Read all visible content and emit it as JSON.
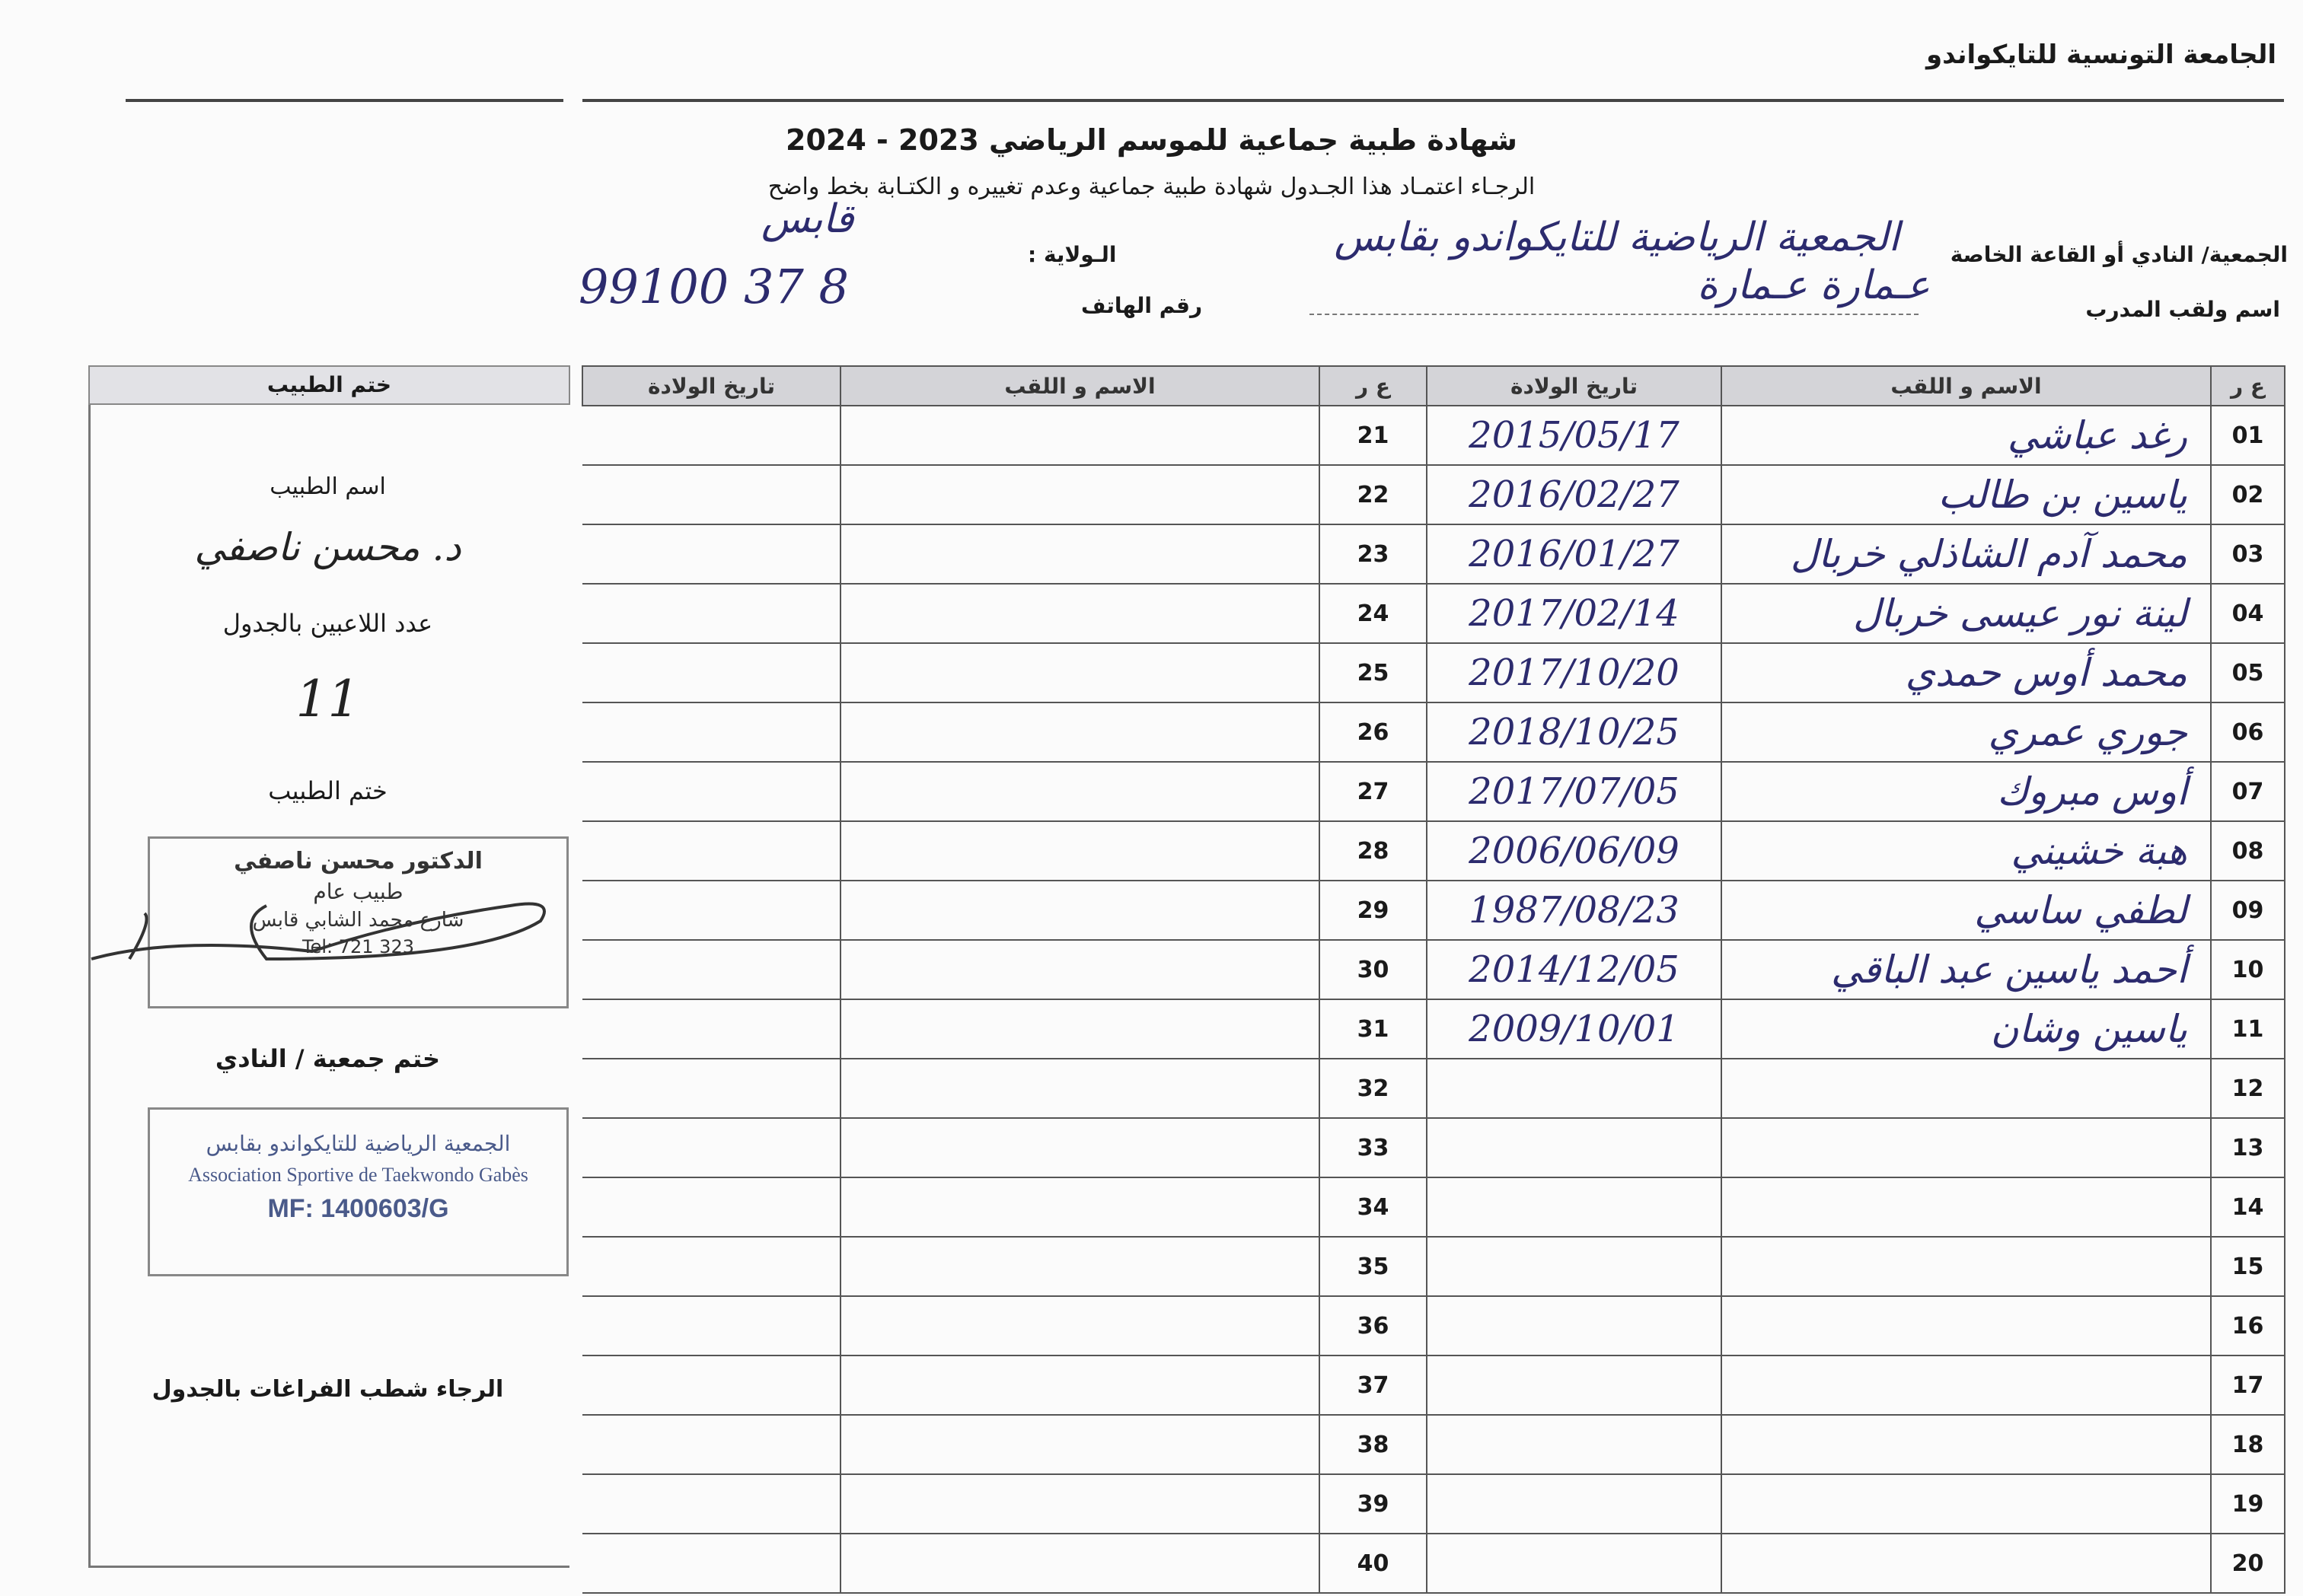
{
  "header": {
    "organization": "الجامعة التونسية للتايكواندو",
    "title": "شهادة طبية جماعية  للموسم الرياضي  2023 - 2024",
    "subtitle": "الرجـاء اعتمـاد هذا الجـدول  شهادة طبية جماعية وعدم تغييره و الكتـابة بخط واضح"
  },
  "form": {
    "club_label": "الجمعية/ النادي أو القاعة الخاصة",
    "club_value": "الجمعية الرياضية للتايكواندو بقابس",
    "state_label": "الـولاية :",
    "state_value": "قابس",
    "coach_label": "اسم ولقب المدرب",
    "coach_value": "عـمارة عـمارة",
    "phone_label": "رقم الهاتف",
    "phone_value": "99100 37 8"
  },
  "table": {
    "headers": {
      "num": "ع ر",
      "name": "الاسم و اللقب",
      "birth": "تاريخ الولادة"
    },
    "right_rows": [
      {
        "num": "01",
        "name": "رغد عباشي",
        "birth": "2015/05/17"
      },
      {
        "num": "02",
        "name": "ياسين بن طالب",
        "birth": "2016/02/27"
      },
      {
        "num": "03",
        "name": "محمد آدم الشاذلي خربال",
        "birth": "2016/01/27"
      },
      {
        "num": "04",
        "name": "لينة نور عيسى خربال",
        "birth": "2017/02/14"
      },
      {
        "num": "05",
        "name": "محمد أوس حمدي",
        "birth": "2017/10/20"
      },
      {
        "num": "06",
        "name": "جوري عمري",
        "birth": "2018/10/25"
      },
      {
        "num": "07",
        "name": "أوس مبروك",
        "birth": "2017/07/05"
      },
      {
        "num": "08",
        "name": "هبة خشيني",
        "birth": "2006/06/09"
      },
      {
        "num": "09",
        "name": "لطفي ساسي",
        "birth": "1987/08/23"
      },
      {
        "num": "10",
        "name": "أحمد ياسين عبد الباقي",
        "birth": "2014/12/05"
      },
      {
        "num": "11",
        "name": "ياسين وشان",
        "birth": "2009/10/01"
      },
      {
        "num": "12",
        "name": "",
        "birth": ""
      },
      {
        "num": "13",
        "name": "",
        "birth": ""
      },
      {
        "num": "14",
        "name": "",
        "birth": ""
      },
      {
        "num": "15",
        "name": "",
        "birth": ""
      },
      {
        "num": "16",
        "name": "",
        "birth": ""
      },
      {
        "num": "17",
        "name": "",
        "birth": ""
      },
      {
        "num": "18",
        "name": "",
        "birth": ""
      },
      {
        "num": "19",
        "name": "",
        "birth": ""
      },
      {
        "num": "20",
        "name": "",
        "birth": ""
      }
    ],
    "left_rows": [
      "21",
      "22",
      "23",
      "24",
      "25",
      "26",
      "27",
      "28",
      "29",
      "30",
      "31",
      "32",
      "33",
      "34",
      "35",
      "36",
      "37",
      "38",
      "39",
      "40"
    ]
  },
  "doctor_panel": {
    "header": "ختم الطبيب",
    "doctor_name_label": "اسم الطبيب",
    "doctor_name_value": "د. محسن ناصفي",
    "player_count_label": "عدد اللاعبين بالجدول",
    "player_count_value": "11",
    "doctor_stamp_label": "ختم الطبيب",
    "doctor_stamp": {
      "line1": "الدكتور محسن ناصفي",
      "line2": "طبيب عام",
      "line3": "شارع محمد الشابي قابس",
      "line4": "Tel: 721 323"
    },
    "club_stamp_label": "ختم جمعية / النادي",
    "club_stamp": {
      "line1": "الجمعية الرياضية للتايكواندو بقابس",
      "line2": "Association Sportive de Taekwondo Gabès",
      "line3": "MF: 1400603/G"
    },
    "note": "الرجاء شطب الفراغات بالجدول"
  },
  "colors": {
    "ink": "#2c2b6e",
    "stamp_blue": "#4a5a8a",
    "header_gray": "#d4d4d8"
  }
}
